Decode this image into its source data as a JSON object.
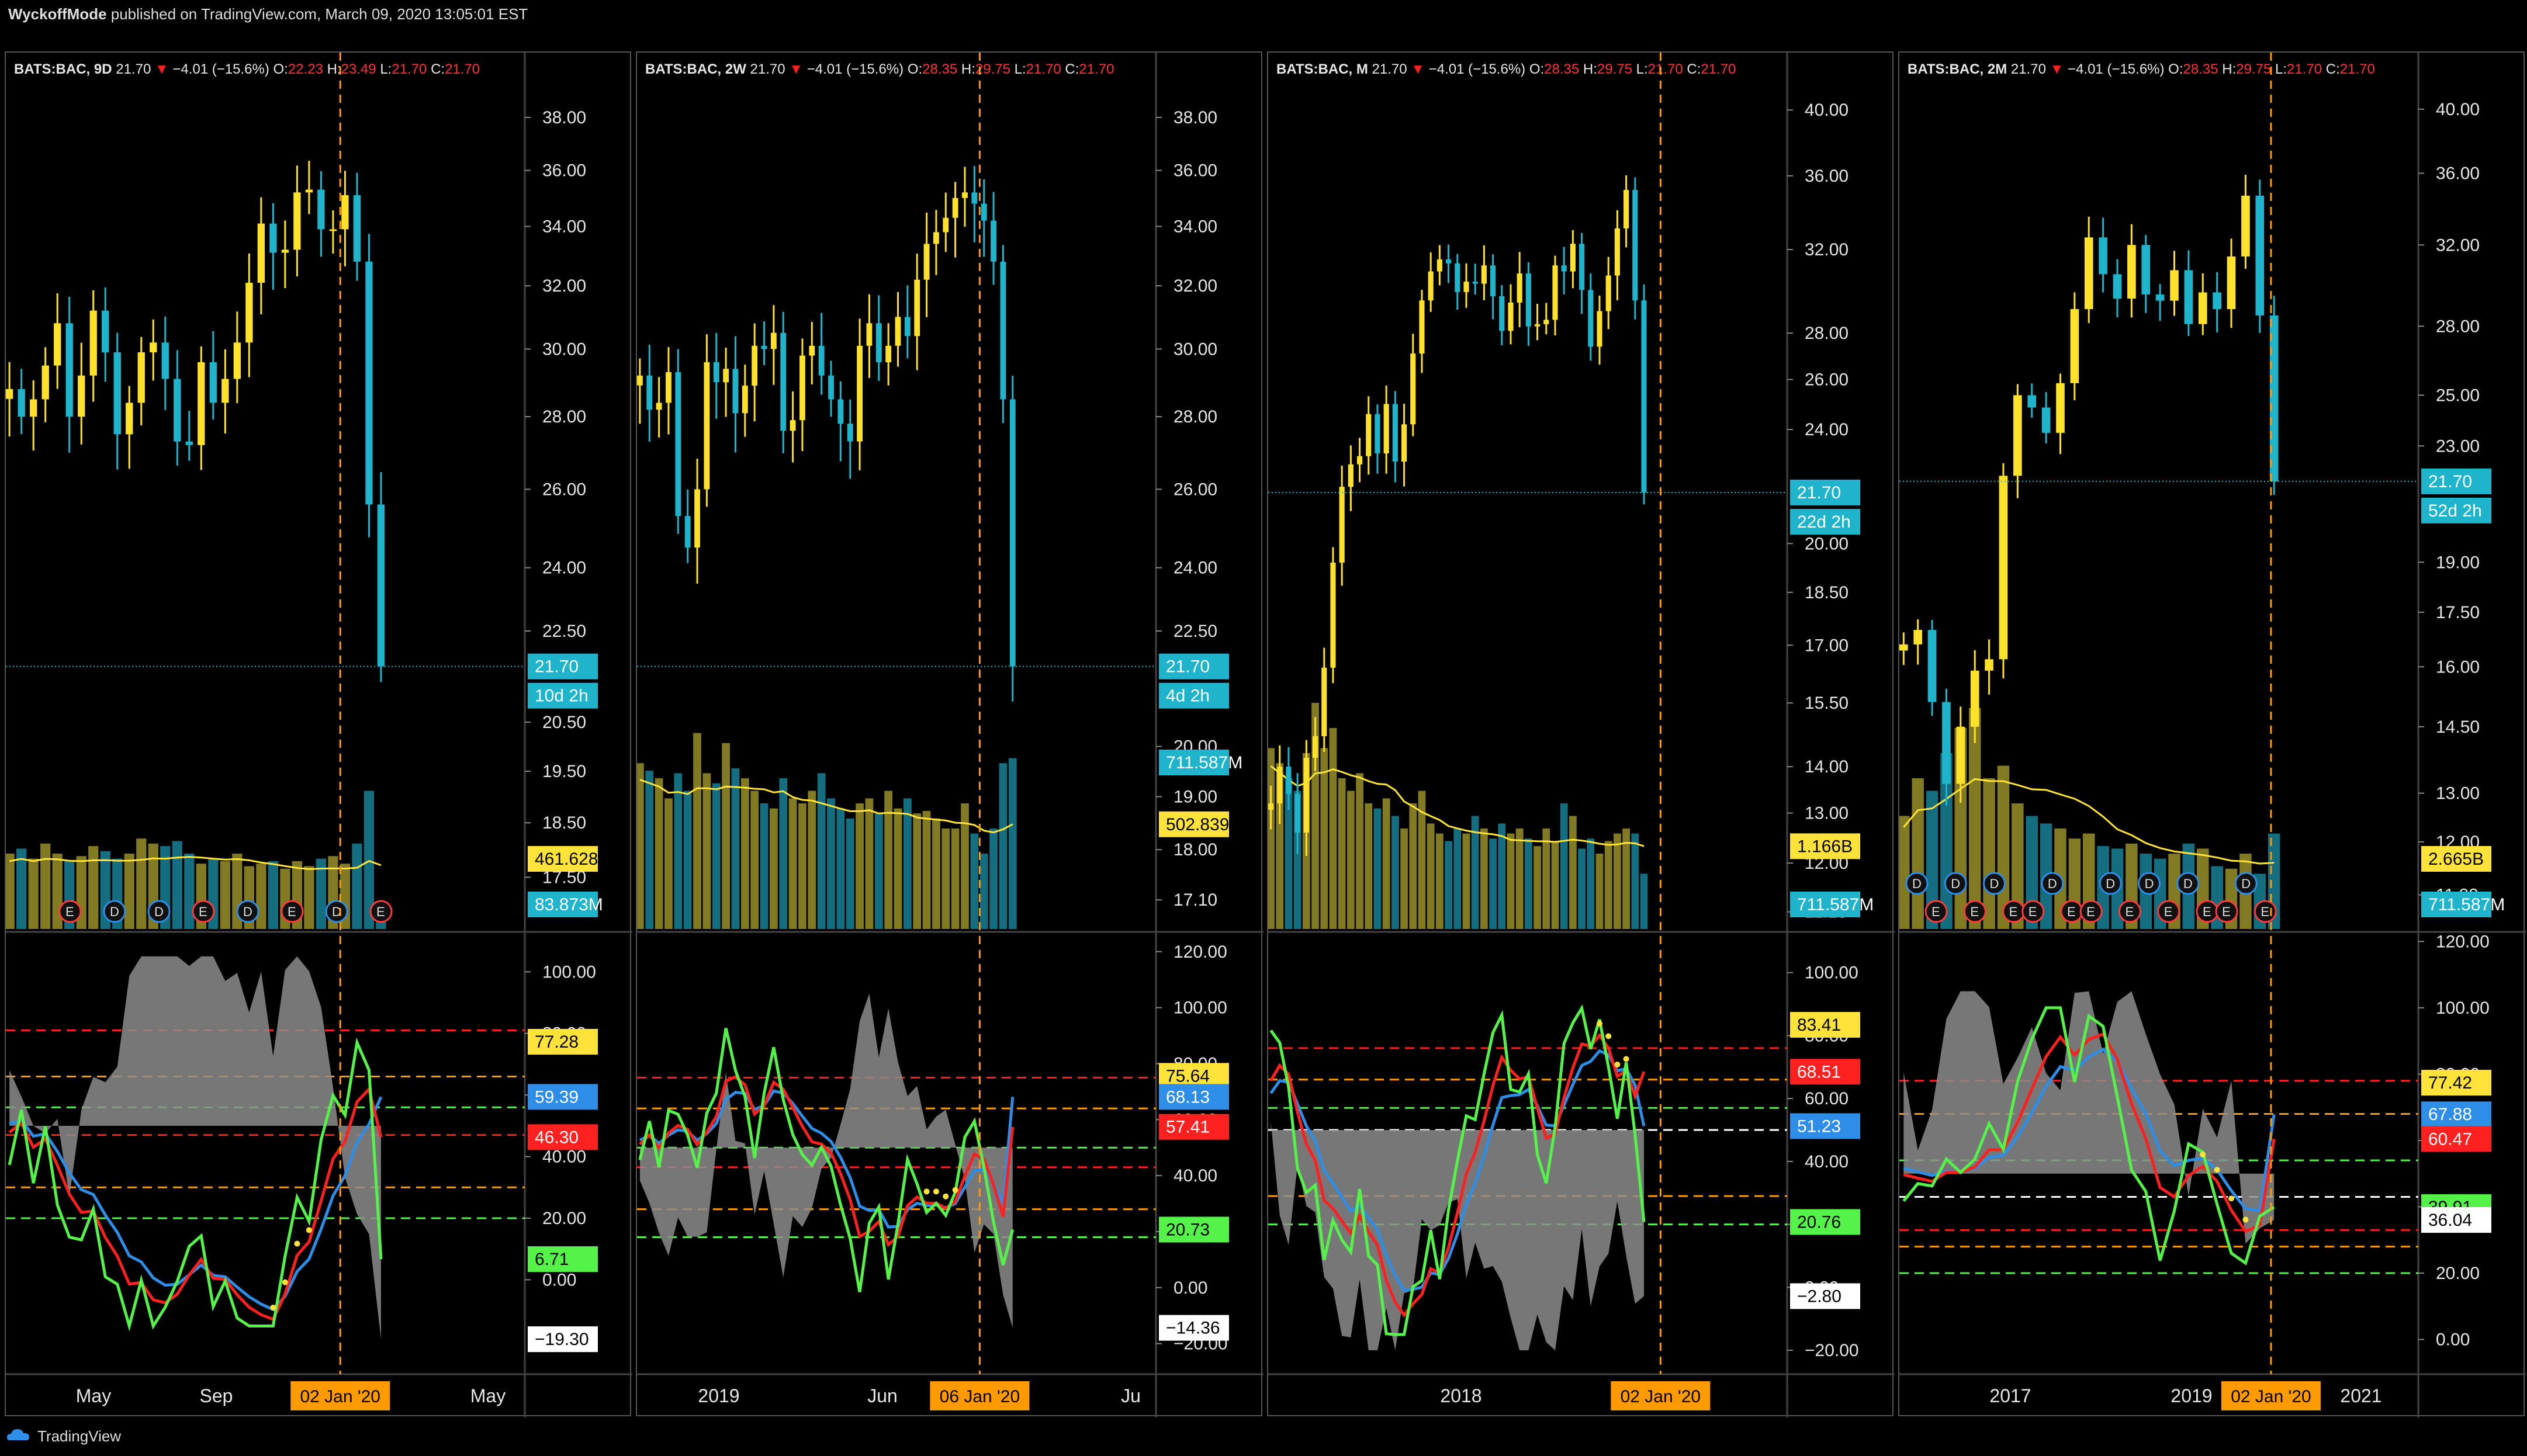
{
  "header": {
    "author": "WyckoffMode",
    "published": "published on TradingView.com, March 09, 2020 13:05:01 EST"
  },
  "footer": {
    "brand": "TradingView"
  },
  "colors": {
    "up": "#ffe02a",
    "down": "#1eb4cc",
    "vol_up": "#827a22",
    "vol_down": "#156d80",
    "vol_ma": "#ffe33a",
    "red": "#ff2020",
    "blue": "#2e8de6",
    "green": "#55f24a",
    "gray_fill": "#8c8c8c",
    "orange": "#ff9a00",
    "axis_text": "#e6e6e6"
  },
  "chart_data": [
    {
      "type": "candlestick",
      "symbol": "BATS:BAC",
      "interval": "9D",
      "last": "21.70",
      "change": "−4.01 (−15.6%)",
      "open": "22.23",
      "high": "23.49",
      "low": "21.70",
      "close": "21.70",
      "y_scale": "log",
      "ylim": [
        16.6,
        39.5
      ],
      "y_ticks": [
        "38.00",
        "36.00",
        "34.00",
        "32.00",
        "30.00",
        "28.00",
        "26.00",
        "24.00",
        "22.50",
        "20.50",
        "19.50",
        "18.50",
        "17.50"
      ],
      "price_label": "21.70",
      "countdown_label": "10d 2h",
      "vol_ma_label": "461.628M",
      "vol_label": "83.873M",
      "osc_ylim": [
        -28,
        112
      ],
      "osc_ticks": [
        "100.00",
        "80.00",
        "60.00",
        "40.00",
        "20.00",
        "0.00"
      ],
      "osc_labels": [
        {
          "text": "77.28",
          "bg": "#ffe33a",
          "fg": "#000",
          "value": 77.28
        },
        {
          "text": "59.39",
          "bg": "#2e8de6",
          "fg": "#fff",
          "value": 59.39
        },
        {
          "text": "46.30",
          "bg": "#ff2020",
          "fg": "#fff",
          "value": 46.3
        },
        {
          "text": "6.71",
          "bg": "#55f24a",
          "fg": "#000",
          "value": 6.71
        },
        {
          "text": "−19.30",
          "bg": "#ffffff",
          "fg": "#000",
          "value": -19.3
        }
      ],
      "osc_levels": [
        {
          "value": 81,
          "color": "#ff2020"
        },
        {
          "value": 66,
          "color": "#ff9a00"
        },
        {
          "value": 56,
          "color": "#55f24a"
        },
        {
          "value": 47,
          "color": "#ff2020"
        },
        {
          "value": 30,
          "color": "#ff9a00"
        },
        {
          "value": 20,
          "color": "#55f24a"
        }
      ],
      "x_labels": [
        "May",
        "Sep",
        "May"
      ],
      "date_label": "02 Jan '20",
      "events": [
        "E",
        "D",
        "D",
        "E",
        "D",
        "E",
        "D",
        "E"
      ]
    },
    {
      "type": "candlestick",
      "symbol": "BATS:BAC",
      "interval": "2W",
      "last": "21.70",
      "change": "−4.01 (−15.6%)",
      "open": "28.35",
      "high": "29.75",
      "low": "21.70",
      "close": "21.70",
      "y_scale": "log",
      "ylim": [
        16.6,
        39.5
      ],
      "y_ticks": [
        "38.00",
        "36.00",
        "34.00",
        "32.00",
        "30.00",
        "28.00",
        "26.00",
        "24.00",
        "22.50",
        "20.00",
        "19.00",
        "18.00",
        "17.10"
      ],
      "price_label": "21.70",
      "countdown_label": "4d 2h",
      "vol_ma_label": "502.839M",
      "vol_label": "711.587M",
      "osc_ylim": [
        -28,
        126
      ],
      "osc_ticks": [
        "120.00",
        "100.00",
        "80.00",
        "60.00",
        "40.00",
        "20.00",
        "0.00",
        "−20.00"
      ],
      "osc_labels": [
        {
          "text": "75.64",
          "bg": "#ffe33a",
          "fg": "#000",
          "value": 75.64
        },
        {
          "text": "68.13",
          "bg": "#2e8de6",
          "fg": "#fff",
          "value": 68.13
        },
        {
          "text": "57.41",
          "bg": "#ff2020",
          "fg": "#fff",
          "value": 57.41
        },
        {
          "text": "20.73",
          "bg": "#55f24a",
          "fg": "#000",
          "value": 20.73
        },
        {
          "text": "−14.36",
          "bg": "#ffffff",
          "fg": "#000",
          "value": -14.36
        }
      ],
      "osc_levels": [
        {
          "value": 75,
          "color": "#ff2020"
        },
        {
          "value": 64,
          "color": "#ff9a00"
        },
        {
          "value": 50,
          "color": "#55f24a"
        },
        {
          "value": 43,
          "color": "#ff2020"
        },
        {
          "value": 28,
          "color": "#ff9a00"
        },
        {
          "value": 18,
          "color": "#55f24a"
        }
      ],
      "x_labels": [
        "2019",
        "Jun",
        "Ju"
      ],
      "date_label": "06 Jan '20",
      "events": []
    },
    {
      "type": "candlestick",
      "symbol": "BATS:BAC",
      "interval": "M",
      "last": "21.70",
      "change": "−4.01 (−15.6%)",
      "open": "28.35",
      "high": "29.75",
      "low": "21.70",
      "close": "21.70",
      "y_scale": "log",
      "ylim": [
        10.8,
        42
      ],
      "y_ticks": [
        "40.00",
        "36.00",
        "32.00",
        "28.00",
        "26.00",
        "24.00",
        "20.00",
        "18.50",
        "17.00",
        "15.50",
        "14.00",
        "13.00",
        "12.00",
        "11.10"
      ],
      "price_label": "21.70",
      "countdown_label": "22d 2h",
      "vol_ma_label": "1.166B",
      "vol_label": "711.587M",
      "osc_ylim": [
        -25,
        112
      ],
      "osc_ticks": [
        "100.00",
        "80.00",
        "60.00",
        "40.00",
        "20.00",
        "0.00",
        "−20.00"
      ],
      "osc_labels": [
        {
          "text": "83.41",
          "bg": "#ffe33a",
          "fg": "#000",
          "value": 83.41
        },
        {
          "text": "68.51",
          "bg": "#ff2020",
          "fg": "#fff",
          "value": 68.51
        },
        {
          "text": "51.23",
          "bg": "#2e8de6",
          "fg": "#fff",
          "value": 51.23
        },
        {
          "text": "20.76",
          "bg": "#55f24a",
          "fg": "#000",
          "value": 20.76
        },
        {
          "text": "−2.80",
          "bg": "#ffffff",
          "fg": "#000",
          "value": -2.8
        }
      ],
      "osc_levels": [
        {
          "value": 76,
          "color": "#ff2020"
        },
        {
          "value": 66,
          "color": "#ff9a00"
        },
        {
          "value": 57,
          "color": "#55f24a"
        },
        {
          "value": 50,
          "color": "#ffffff"
        },
        {
          "value": 29,
          "color": "#ff9a00"
        },
        {
          "value": 20,
          "color": "#55f24a"
        }
      ],
      "x_labels": [
        "2018"
      ],
      "date_label": "02 Jan '20",
      "events": []
    },
    {
      "type": "candlestick",
      "symbol": "BATS:BAC",
      "interval": "2M",
      "last": "21.70",
      "change": "−4.01 (−15.6%)",
      "open": "28.35",
      "high": "29.75",
      "low": "21.70",
      "close": "21.70",
      "y_scale": "log",
      "ylim": [
        10.4,
        42
      ],
      "y_ticks": [
        "40.00",
        "36.00",
        "32.00",
        "28.00",
        "25.00",
        "23.00",
        "19.00",
        "17.50",
        "16.00",
        "14.50",
        "13.00",
        "12.00",
        "11.00"
      ],
      "price_label": "21.70",
      "countdown_label": "52d 2h",
      "vol_ma_label": "2.665B",
      "vol_label": "711.587M",
      "osc_ylim": [
        -8,
        122
      ],
      "osc_ticks": [
        "120.00",
        "100.00",
        "80.00",
        "60.00",
        "40.00",
        "20.00",
        "0.00"
      ],
      "osc_labels": [
        {
          "text": "77.42",
          "bg": "#ffe33a",
          "fg": "#000",
          "value": 77.42
        },
        {
          "text": "67.88",
          "bg": "#2e8de6",
          "fg": "#fff",
          "value": 67.88
        },
        {
          "text": "60.47",
          "bg": "#ff2020",
          "fg": "#fff",
          "value": 60.47
        },
        {
          "text": "39.91",
          "bg": "#55f24a",
          "fg": "#000",
          "value": 39.91
        },
        {
          "text": "36.04",
          "bg": "#ffffff",
          "fg": "#000",
          "value": 36.04
        }
      ],
      "osc_levels": [
        {
          "value": 78,
          "color": "#ff2020"
        },
        {
          "value": 68,
          "color": "#ff9a00"
        },
        {
          "value": 54,
          "color": "#55f24a"
        },
        {
          "value": 43,
          "color": "#ffffff"
        },
        {
          "value": 33,
          "color": "#ff2020"
        },
        {
          "value": 28,
          "color": "#ff9a00"
        },
        {
          "value": 20,
          "color": "#55f24a"
        }
      ],
      "x_labels": [
        "2017",
        "2019",
        "2021"
      ],
      "date_label": "02 Jan '20",
      "events": [
        "D",
        "E",
        "D",
        "E",
        "D",
        "E",
        "E",
        "D",
        "E",
        "E",
        "D",
        "E",
        "D",
        "E",
        "D",
        "E",
        "E",
        "D",
        "E"
      ]
    }
  ]
}
